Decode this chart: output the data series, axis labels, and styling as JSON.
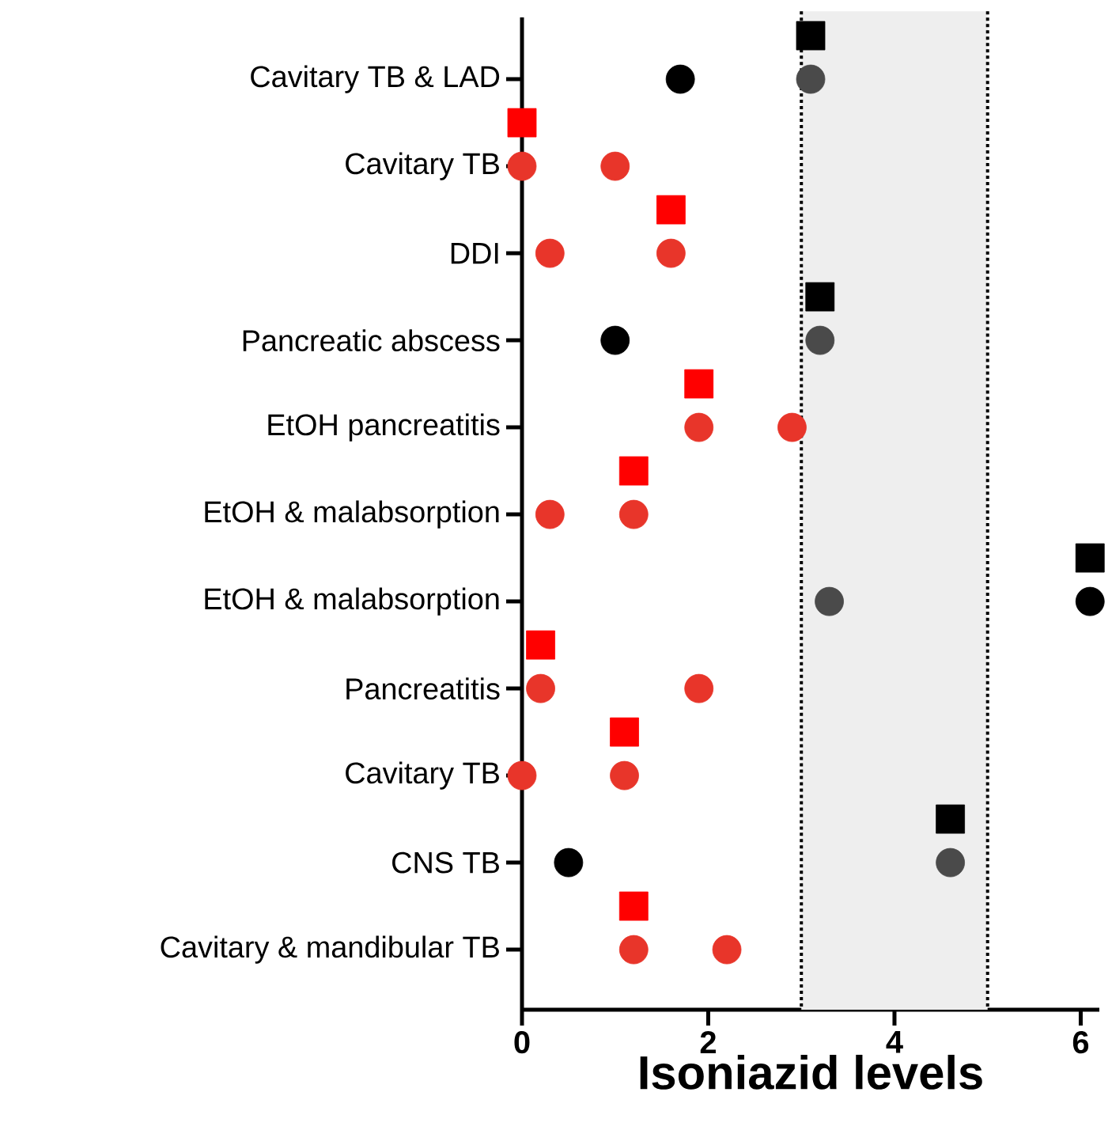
{
  "chart_data": {
    "type": "scatter",
    "orientation": "horizontal",
    "xlabel": "Isoniazid levels",
    "xlim": [
      0,
      6.2
    ],
    "xticks": [
      0,
      2,
      4,
      6
    ],
    "categories": [
      null,
      "Cavitary TB & LAD",
      null,
      "Cavitary TB",
      null,
      "DDI",
      null,
      "Pancreatic abscess",
      null,
      "EtOH pancreatitis",
      null,
      "EtOH & malabsorption",
      null,
      "EtOH & malabsorption",
      null,
      "Pancreatitis",
      null,
      "Cavitary TB",
      null,
      "CNS TB",
      null,
      "Cavitary & mandibular TB"
    ],
    "bands": [
      {
        "axis": "x",
        "from": 3,
        "to": 5,
        "color": "#eeeeee"
      }
    ],
    "ref_lines": [
      {
        "axis": "x",
        "value": 3,
        "color": "#000000",
        "line_style": "dotted"
      },
      {
        "axis": "x",
        "value": 5,
        "color": "#000000",
        "line_style": "dotted"
      }
    ],
    "series": [
      {
        "marker": "circle",
        "values": [
          null,
          1.7,
          null,
          0,
          null,
          0.3,
          null,
          1.0,
          null,
          1.9,
          null,
          0.3,
          null,
          3.3,
          null,
          0.2,
          null,
          0,
          null,
          0.5,
          null,
          1.2
        ],
        "colors": [
          null,
          "#000000",
          null,
          "#e8352a",
          null,
          "#e8352a",
          null,
          "#000000",
          null,
          "#e8352a",
          null,
          "#e8352a",
          null,
          "#4a4a4a",
          null,
          "#e8352a",
          null,
          "#e8352a",
          null,
          "#000000",
          null,
          "#e8352a"
        ]
      },
      {
        "marker": "circle",
        "values": [
          null,
          3.1,
          null,
          1.0,
          null,
          1.6,
          null,
          3.2,
          null,
          2.9,
          null,
          1.2,
          null,
          6.1,
          null,
          1.9,
          null,
          1.1,
          null,
          4.6,
          null,
          2.2
        ],
        "colors": [
          null,
          "#4a4a4a",
          null,
          "#e8352a",
          null,
          "#e8352a",
          null,
          "#4a4a4a",
          null,
          "#e8352a",
          null,
          "#e8352a",
          null,
          "#000000",
          null,
          "#e8352a",
          null,
          "#e8352a",
          null,
          "#4a4a4a",
          null,
          "#e8352a"
        ]
      },
      {
        "marker": "square",
        "values": [
          3.1,
          null,
          0,
          null,
          1.6,
          null,
          3.2,
          null,
          1.9,
          null,
          1.2,
          null,
          6.1,
          null,
          0.2,
          null,
          1.1,
          null,
          4.6,
          null,
          1.2,
          null
        ],
        "colors": [
          "#000000",
          null,
          "#ff0000",
          null,
          "#ff0000",
          null,
          "#000000",
          null,
          "#ff0000",
          null,
          "#ff0000",
          null,
          "#000000",
          null,
          "#ff0000",
          null,
          "#ff0000",
          null,
          "#000000",
          null,
          "#ff0000",
          null
        ]
      }
    ]
  }
}
